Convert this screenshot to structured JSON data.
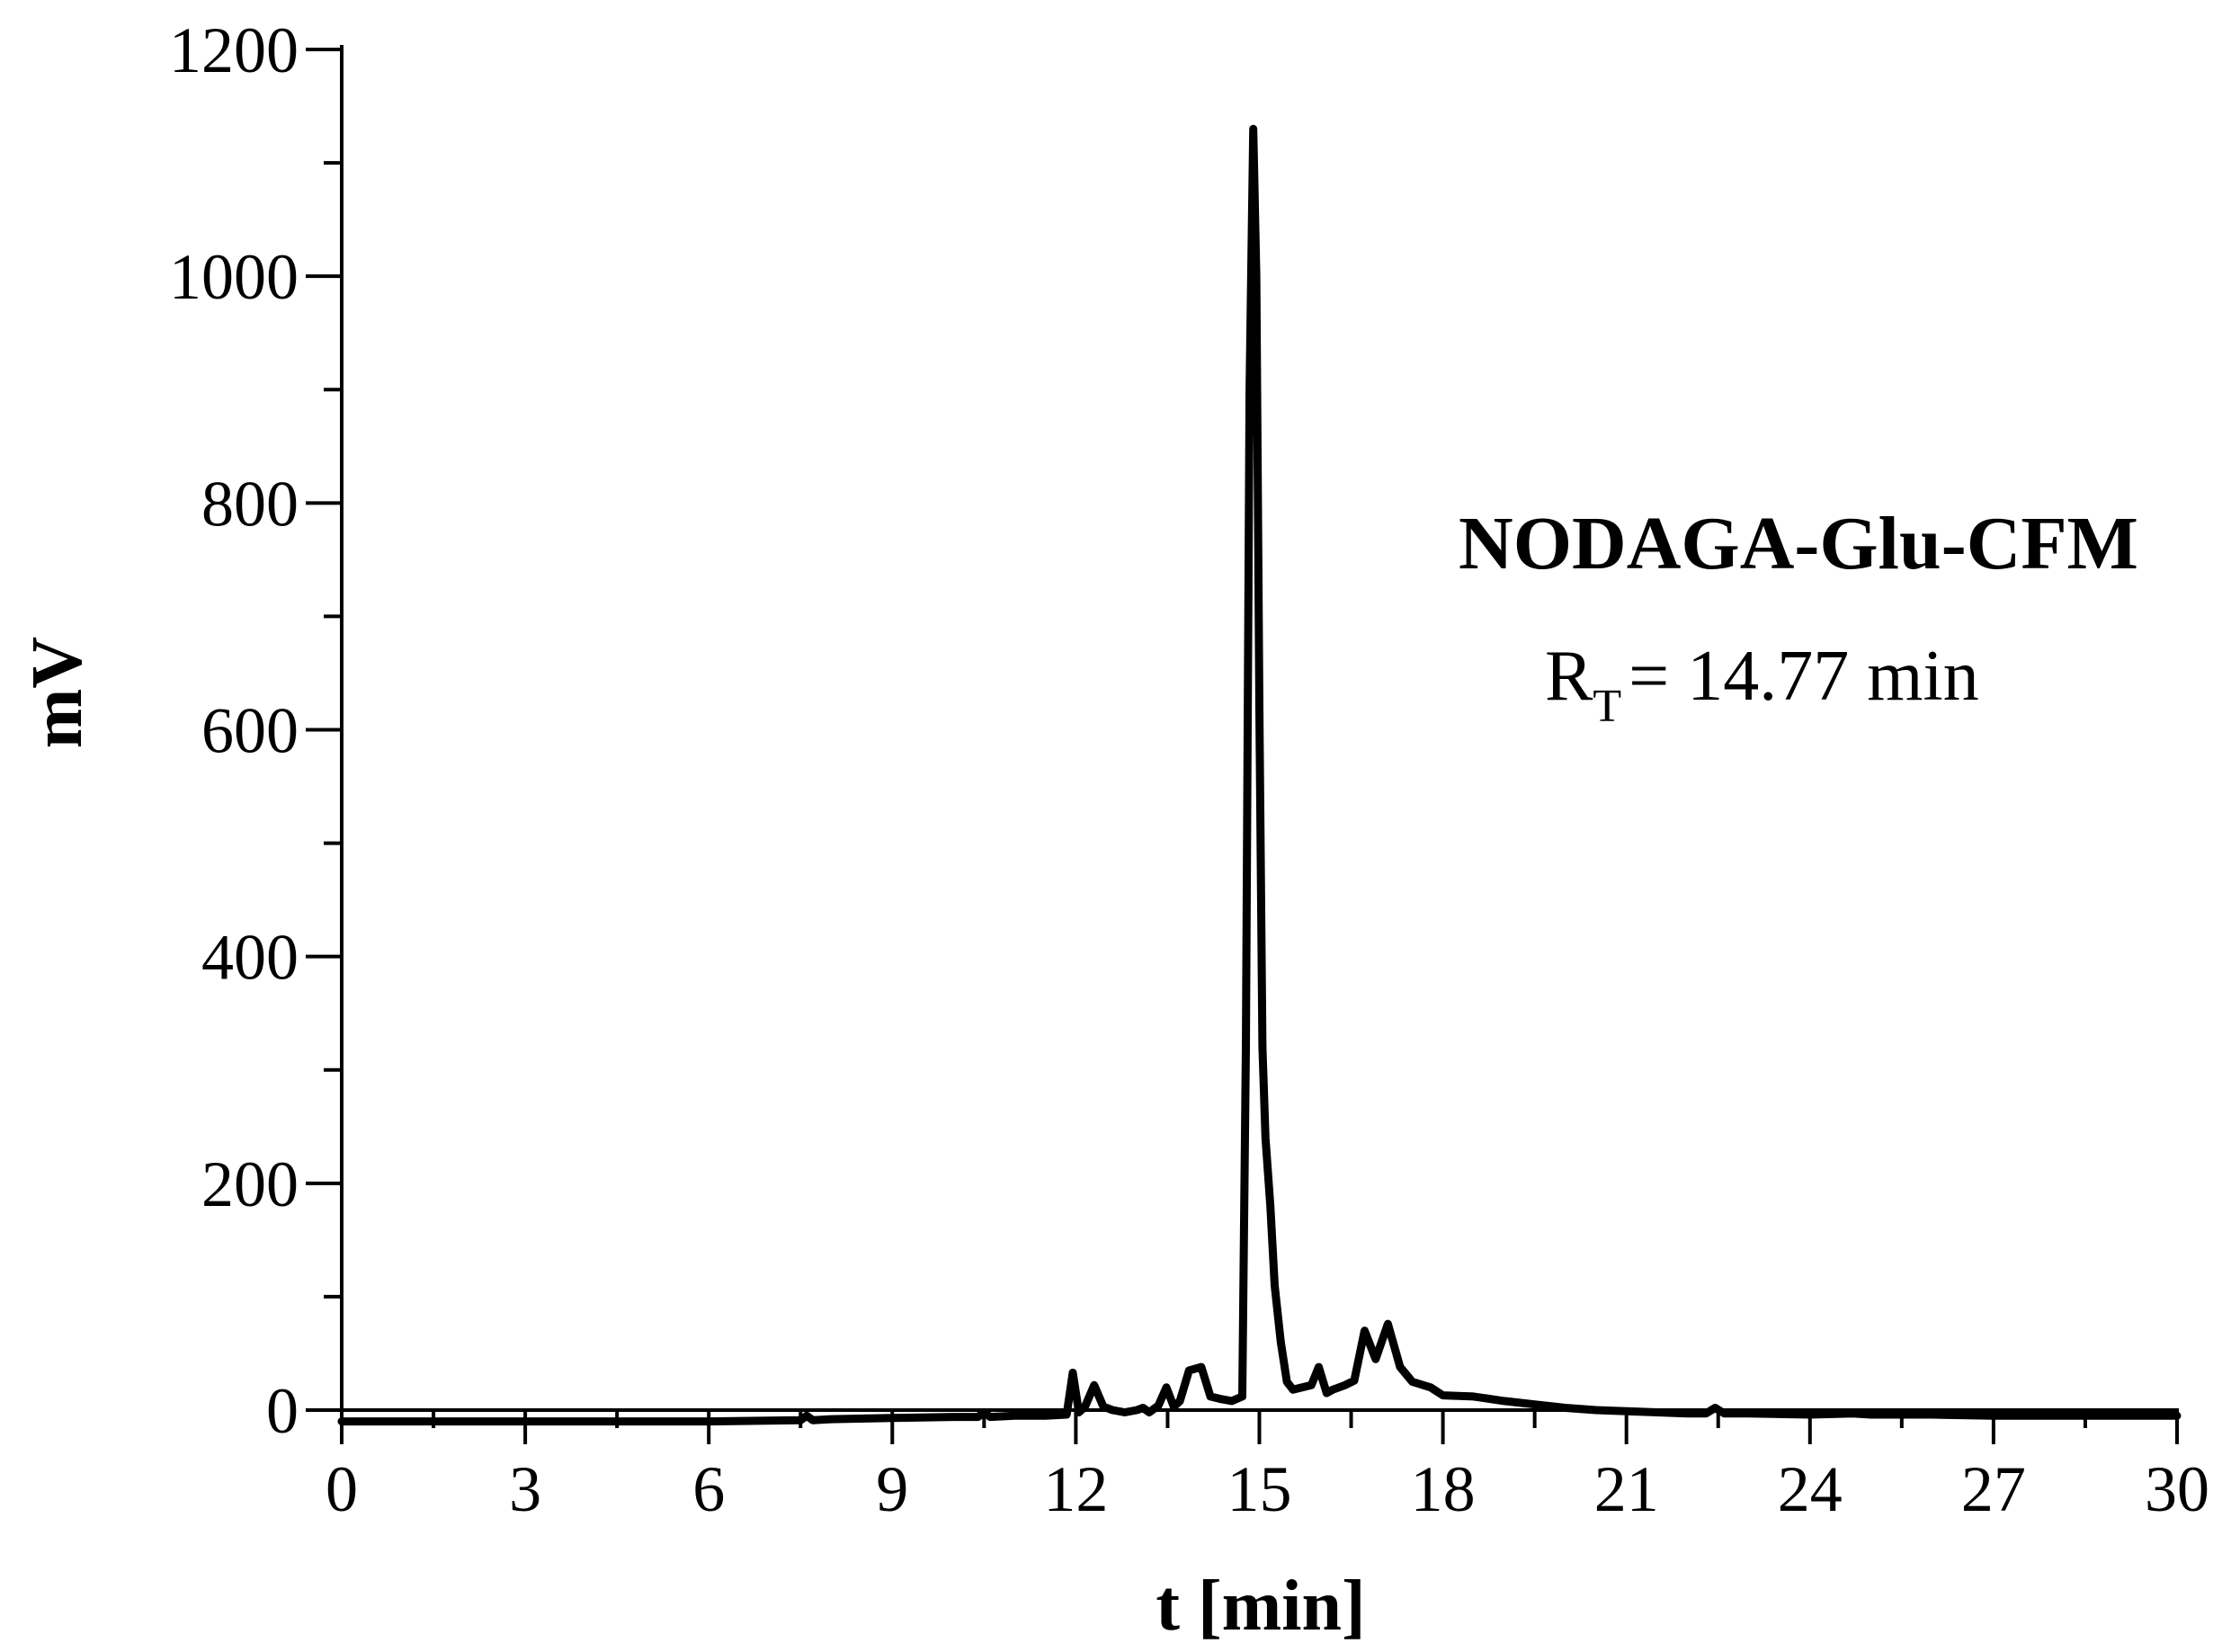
{
  "chart_data": {
    "type": "line",
    "title": "",
    "xlabel": "t [min]",
    "ylabel": "mV",
    "xlim": [
      0,
      30
    ],
    "ylim": [
      0,
      1200
    ],
    "xticks": [
      "0",
      "3",
      "6",
      "9",
      "12",
      "15",
      "18",
      "21",
      "24",
      "27",
      "30"
    ],
    "yticks": [
      "0",
      "200",
      "400",
      "600",
      "800",
      "1000",
      "1200"
    ],
    "grid": false,
    "legend": "none",
    "annotation": {
      "compound": "NODAGA-Glu-CFM",
      "rt_symbol": "R",
      "rt_subscript": "T",
      "rt_value": "= 14.77 min"
    },
    "series": [
      {
        "color": "#000000",
        "x": [
          0,
          2,
          4,
          6,
          7.5,
          7.6,
          7.7,
          8,
          9,
          10,
          10.4,
          10.5,
          10.6,
          11,
          11.5,
          11.85,
          11.95,
          12.05,
          12.15,
          12.3,
          12.45,
          12.6,
          12.8,
          13.0,
          13.1,
          13.2,
          13.35,
          13.48,
          13.6,
          13.7,
          13.85,
          14.05,
          14.2,
          14.35,
          14.55,
          14.72,
          14.78,
          14.84,
          14.9,
          14.95,
          15.0,
          15.05,
          15.1,
          15.18,
          15.25,
          15.35,
          15.45,
          15.55,
          15.7,
          15.85,
          15.97,
          16.1,
          16.2,
          16.4,
          16.55,
          16.72,
          16.9,
          17.1,
          17.3,
          17.5,
          17.8,
          18.0,
          18.5,
          19.0,
          19.5,
          20.0,
          20.5,
          21,
          22,
          22.3,
          22.45,
          22.6,
          23,
          24,
          24.7,
          25,
          26,
          27,
          28,
          29,
          30
        ],
        "values": [
          -10,
          -10,
          -10,
          -10,
          -9,
          -5,
          -9,
          -8,
          -7,
          -6,
          -6,
          -2,
          -6,
          -5,
          -5,
          -4,
          33,
          -2,
          3,
          22,
          3,
          0,
          -2,
          0,
          2,
          -2,
          4,
          20,
          3,
          8,
          35,
          38,
          12,
          10,
          8,
          12,
          320,
          900,
          1130,
          1000,
          620,
          320,
          240,
          180,
          110,
          60,
          25,
          18,
          20,
          22,
          38,
          15,
          18,
          22,
          26,
          70,
          45,
          76,
          38,
          25,
          20,
          13,
          12,
          8,
          5,
          2,
          0,
          -1,
          -3,
          -3,
          2,
          -3,
          -3,
          -4,
          -3,
          -4,
          -4,
          -5,
          -5,
          -5,
          -5
        ]
      }
    ]
  }
}
